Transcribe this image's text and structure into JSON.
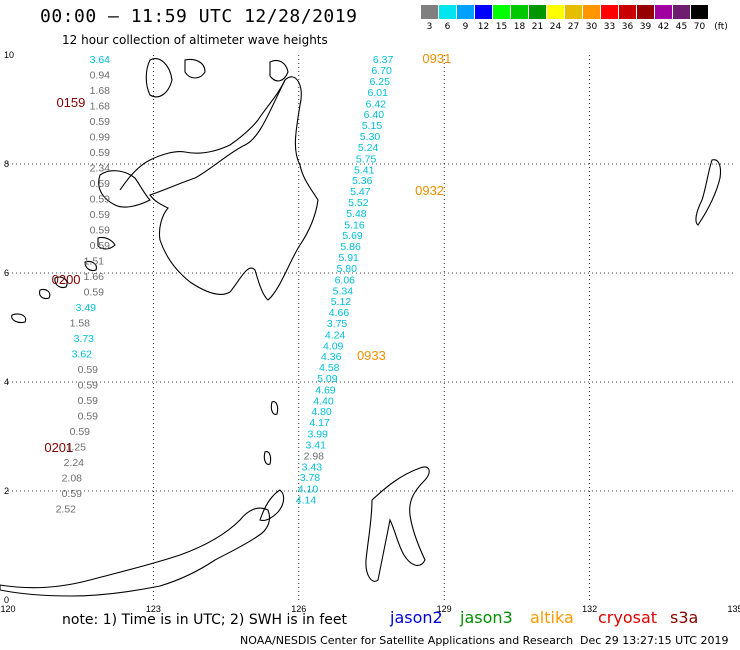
{
  "title": "00:00 – 11:59 UTC 12/28/2019",
  "subtitle": "12 hour collection of altimeter wave heights",
  "scale": {
    "unit_label": "(ft)",
    "entries": [
      {
        "label": "3",
        "color": "#7f7f7f"
      },
      {
        "label": "6",
        "color": "#00e5ee"
      },
      {
        "label": "9",
        "color": "#00a0ff"
      },
      {
        "label": "12",
        "color": "#0000ff"
      },
      {
        "label": "15",
        "color": "#00ff00"
      },
      {
        "label": "18",
        "color": "#00c800"
      },
      {
        "label": "21",
        "color": "#009600"
      },
      {
        "label": "24",
        "color": "#ffff00"
      },
      {
        "label": "27",
        "color": "#e6be00"
      },
      {
        "label": "30",
        "color": "#ff9600"
      },
      {
        "label": "33",
        "color": "#ff0000"
      },
      {
        "label": "36",
        "color": "#c80000"
      },
      {
        "label": "39",
        "color": "#960000"
      },
      {
        "label": "42",
        "color": "#a000a0"
      },
      {
        "label": "45",
        "color": "#6e1e6e"
      },
      {
        "label": "70",
        "color": "#000000"
      }
    ]
  },
  "axes": {
    "lon_labels": [
      "120",
      "123",
      "126",
      "129",
      "132",
      "135"
    ],
    "lat_labels": [
      "10",
      "8",
      "6",
      "4",
      "2",
      "0"
    ]
  },
  "map": {
    "lon_range": [
      120,
      135
    ],
    "lat_range": [
      0,
      10
    ],
    "colors": {
      "gray": "#6e6e6e",
      "cyan": "#00c0d8",
      "orange": "#f09000",
      "darkred": "#800000",
      "coast": "#000000"
    },
    "tracks": [
      {
        "id": "track-west",
        "x": 120.15,
        "lat_top": 9.62,
        "lat_step": 0.193,
        "values": [
          {
            "v": "3.64",
            "c": "cyan"
          },
          {
            "v": "0.94",
            "c": "gray"
          },
          {
            "v": "1.68",
            "c": "gray"
          },
          {
            "v": "1.68",
            "c": "gray"
          },
          {
            "v": "0.59",
            "c": "gray"
          },
          {
            "v": "0.99",
            "c": "gray"
          },
          {
            "v": "0.59",
            "c": "gray"
          },
          {
            "v": "2.34",
            "c": "gray"
          },
          {
            "v": "0.59",
            "c": "gray"
          },
          {
            "v": "0.59",
            "c": "gray"
          },
          {
            "v": "0.59",
            "c": "gray"
          },
          {
            "v": "0.59",
            "c": "gray"
          },
          {
            "v": "0.59",
            "c": "gray"
          },
          {
            "v": "1.51",
            "c": "gray"
          },
          {
            "v": "1.66",
            "c": "gray"
          },
          {
            "v": "0.59",
            "c": "gray"
          },
          {
            "v": "3.49",
            "c": "cyan"
          },
          {
            "v": "1.58",
            "c": "gray"
          },
          {
            "v": "3.73",
            "c": "cyan"
          },
          {
            "v": "3.62",
            "c": "cyan"
          },
          {
            "v": "0.59",
            "c": "gray"
          },
          {
            "v": "0.59",
            "c": "gray"
          },
          {
            "v": "0.59",
            "c": "gray"
          },
          {
            "v": "0.59",
            "c": "gray"
          },
          {
            "v": "0.59",
            "c": "gray"
          },
          {
            "v": "1.25",
            "c": "gray"
          },
          {
            "v": "2.24",
            "c": "gray"
          },
          {
            "v": "2.08",
            "c": "gray"
          },
          {
            "v": "0.59",
            "c": "gray"
          },
          {
            "v": "2.52",
            "c": "gray"
          }
        ]
      },
      {
        "id": "track-east",
        "values": [
          {
            "v": "6.37",
            "c": "cyan",
            "lon": 127.95,
            "lat": 9.85
          },
          {
            "v": "6.70",
            "c": "cyan",
            "lon": 127.92,
            "lat": 9.65
          },
          {
            "v": "6.25",
            "c": "cyan",
            "lon": 127.88,
            "lat": 9.45
          },
          {
            "v": "6.01",
            "c": "cyan",
            "lon": 127.84,
            "lat": 9.25
          },
          {
            "v": "6.42",
            "c": "cyan",
            "lon": 127.8,
            "lat": 9.04
          },
          {
            "v": "6.40",
            "c": "cyan",
            "lon": 127.76,
            "lat": 8.84
          },
          {
            "v": "5.15",
            "c": "cyan",
            "lon": 127.72,
            "lat": 8.64
          },
          {
            "v": "5.30",
            "c": "cyan",
            "lon": 127.68,
            "lat": 8.44
          },
          {
            "v": "5.24",
            "c": "cyan",
            "lon": 127.64,
            "lat": 8.24
          },
          {
            "v": "5.75",
            "c": "cyan",
            "lon": 127.6,
            "lat": 8.03
          },
          {
            "v": "5.41",
            "c": "cyan",
            "lon": 127.56,
            "lat": 7.83
          },
          {
            "v": "5.36",
            "c": "cyan",
            "lon": 127.52,
            "lat": 7.63
          },
          {
            "v": "5.47",
            "c": "cyan",
            "lon": 127.48,
            "lat": 7.43
          },
          {
            "v": "5.52",
            "c": "cyan",
            "lon": 127.44,
            "lat": 7.23
          },
          {
            "v": "5.48",
            "c": "cyan",
            "lon": 127.4,
            "lat": 7.03
          },
          {
            "v": "5.16",
            "c": "cyan",
            "lon": 127.36,
            "lat": 6.82
          },
          {
            "v": "5.69",
            "c": "cyan",
            "lon": 127.32,
            "lat": 6.62
          },
          {
            "v": "5.86",
            "c": "cyan",
            "lon": 127.28,
            "lat": 6.42
          },
          {
            "v": "5.91",
            "c": "cyan",
            "lon": 127.24,
            "lat": 6.22
          },
          {
            "v": "5.80",
            "c": "cyan",
            "lon": 127.2,
            "lat": 6.02
          },
          {
            "v": "6.06",
            "c": "cyan",
            "lon": 127.16,
            "lat": 5.81
          },
          {
            "v": "5.34",
            "c": "cyan",
            "lon": 127.12,
            "lat": 5.61
          },
          {
            "v": "5.12",
            "c": "cyan",
            "lon": 127.08,
            "lat": 5.41
          },
          {
            "v": "4.66",
            "c": "cyan",
            "lon": 127.04,
            "lat": 5.21
          },
          {
            "v": "3.75",
            "c": "cyan",
            "lon": 127.0,
            "lat": 5.01
          },
          {
            "v": "4.24",
            "c": "cyan",
            "lon": 126.96,
            "lat": 4.8
          },
          {
            "v": "4.09",
            "c": "cyan",
            "lon": 126.92,
            "lat": 4.6
          },
          {
            "v": "4.36",
            "c": "cyan",
            "lon": 126.88,
            "lat": 4.4
          },
          {
            "v": "4.58",
            "c": "cyan",
            "lon": 126.84,
            "lat": 4.2
          },
          {
            "v": "5.09",
            "c": "cyan",
            "lon": 126.8,
            "lat": 4.0
          },
          {
            "v": "4.69",
            "c": "cyan",
            "lon": 126.76,
            "lat": 3.79
          },
          {
            "v": "4.40",
            "c": "cyan",
            "lon": 126.72,
            "lat": 3.59
          },
          {
            "v": "4.80",
            "c": "cyan",
            "lon": 126.68,
            "lat": 3.39
          },
          {
            "v": "4.17",
            "c": "cyan",
            "lon": 126.64,
            "lat": 3.19
          },
          {
            "v": "3.99",
            "c": "cyan",
            "lon": 126.6,
            "lat": 2.98
          },
          {
            "v": "3.41",
            "c": "cyan",
            "lon": 126.56,
            "lat": 2.78
          },
          {
            "v": "2.98",
            "c": "gray",
            "lon": 126.52,
            "lat": 2.58
          },
          {
            "v": "3.43",
            "c": "cyan",
            "lon": 126.48,
            "lat": 2.38
          },
          {
            "v": "3.78",
            "c": "cyan",
            "lon": 126.44,
            "lat": 2.18
          },
          {
            "v": "4.10",
            "c": "cyan",
            "lon": 126.4,
            "lat": 1.97
          },
          {
            "v": "4.14",
            "c": "cyan",
            "lon": 126.36,
            "lat": 1.77
          }
        ]
      }
    ],
    "time_labels": [
      {
        "text": "0159",
        "c": "darkred",
        "lon": 121.0,
        "lat": 9.05
      },
      {
        "text": "0200",
        "c": "darkred",
        "lon": 120.9,
        "lat": 5.8
      },
      {
        "text": "0201",
        "c": "darkred",
        "lon": 120.75,
        "lat": 2.72
      },
      {
        "text": "0931",
        "c": "orange",
        "lon": 128.55,
        "lat": 9.85
      },
      {
        "text": "0932",
        "c": "orange",
        "lon": 128.4,
        "lat": 7.43
      },
      {
        "text": "0933",
        "c": "orange",
        "lon": 127.2,
        "lat": 4.4
      }
    ]
  },
  "note": "note:  1) Time is in UTC; 2) SWH is in feet",
  "satellites": [
    {
      "name": "jason2",
      "color": "#0000dd"
    },
    {
      "name": "jason3",
      "color": "#009000"
    },
    {
      "name": "altika",
      "color": "#ff9a00"
    },
    {
      "name": "cryosat",
      "color": "#e00000"
    },
    {
      "name": "s3a",
      "color": "#880000"
    }
  ],
  "footer": {
    "center": "NOAA/NESDIS Center for Satellite Applications and Research",
    "stamp": "Dec 29 13:27:15 UTC 2019"
  }
}
